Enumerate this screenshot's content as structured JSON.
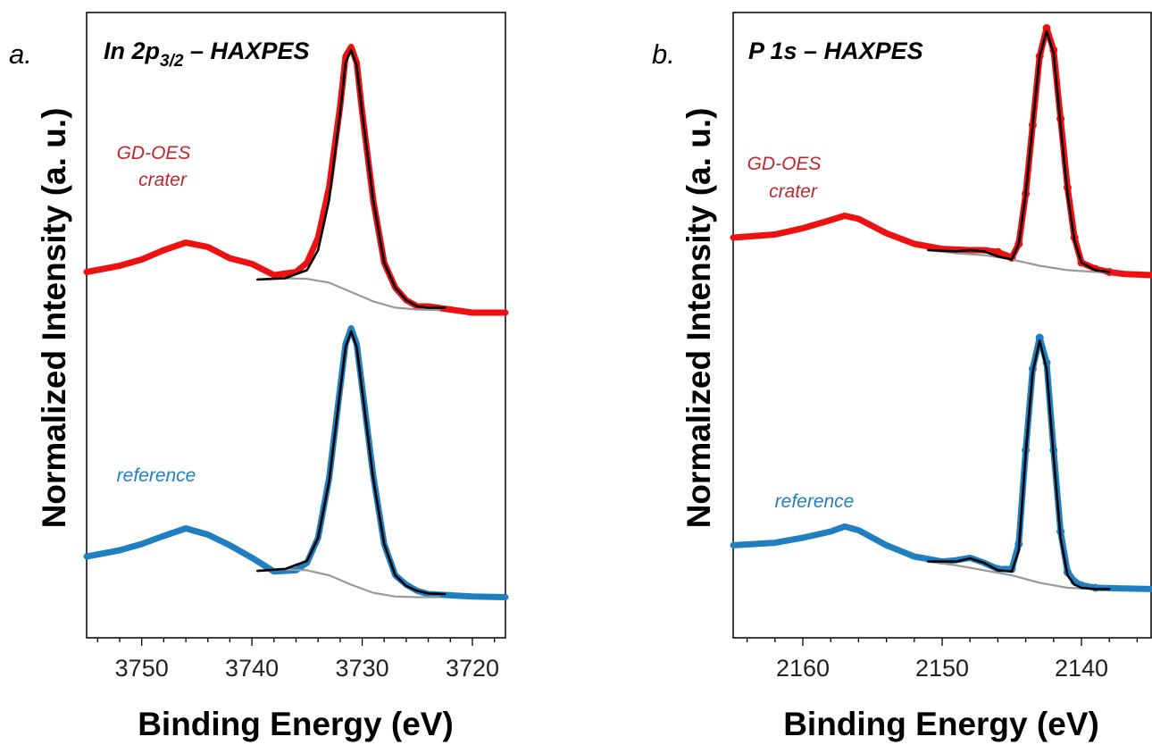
{
  "chart_data": [
    {
      "type": "line",
      "panel_label": "a.",
      "title_main": "In 2p",
      "title_sub": "3/2",
      "title_rest": " – HAXPES",
      "xlabel": "Binding Energy (eV)",
      "ylabel": "Normalized Intensity (a. u.)",
      "x_reversed": true,
      "xlim": [
        3755,
        3717
      ],
      "ylim": [
        0,
        1
      ],
      "xticks": [
        3750,
        3740,
        3730,
        3720
      ],
      "xtick_labels": [
        "3750",
        "3740",
        "3730",
        "3720"
      ],
      "colors": {
        "crater": "#ee1111",
        "reference": "#1f7fc0",
        "fit": "#000000",
        "background": "#999999"
      },
      "annotations": [
        {
          "text": "GD-OES",
          "series": "crater"
        },
        {
          "text": "crater",
          "series": "crater"
        },
        {
          "text": "reference",
          "series": "reference"
        }
      ],
      "series": [
        {
          "key": "crater",
          "x": [
            3755,
            3752,
            3750,
            3748,
            3746,
            3744,
            3742,
            3740,
            3738,
            3736,
            3735,
            3734,
            3733,
            3732,
            3731.5,
            3731,
            3730.5,
            3730,
            3729,
            3728,
            3727,
            3726,
            3725,
            3724,
            3722,
            3720,
            3717
          ],
          "y": [
            0.585,
            0.595,
            0.605,
            0.62,
            0.632,
            0.625,
            0.607,
            0.598,
            0.58,
            0.585,
            0.6,
            0.64,
            0.72,
            0.85,
            0.93,
            0.945,
            0.92,
            0.84,
            0.7,
            0.6,
            0.56,
            0.54,
            0.53,
            0.53,
            0.525,
            0.52,
            0.52
          ]
        },
        {
          "key": "reference",
          "x": [
            3755,
            3752,
            3750,
            3748,
            3746,
            3744,
            3742,
            3740,
            3738,
            3736,
            3735,
            3734,
            3733,
            3732,
            3731.5,
            3731,
            3730.5,
            3730,
            3729,
            3728,
            3727,
            3726,
            3725,
            3724,
            3722,
            3720,
            3717
          ],
          "y": [
            0.13,
            0.14,
            0.15,
            0.163,
            0.175,
            0.165,
            0.148,
            0.128,
            0.106,
            0.108,
            0.12,
            0.16,
            0.255,
            0.4,
            0.47,
            0.495,
            0.47,
            0.4,
            0.26,
            0.15,
            0.1,
            0.085,
            0.075,
            0.07,
            0.068,
            0.066,
            0.065
          ]
        },
        {
          "key": "fit",
          "x": [
            3739.5,
            3737,
            3735,
            3734,
            3733,
            3732,
            3731.5,
            3731,
            3730.5,
            3730,
            3729,
            3728,
            3727,
            3726,
            3725,
            3724,
            3722.5
          ],
          "y": [
            0.573,
            0.575,
            0.588,
            0.62,
            0.7,
            0.84,
            0.92,
            0.94,
            0.915,
            0.84,
            0.7,
            0.6,
            0.56,
            0.54,
            0.53,
            0.528,
            0.528
          ]
        },
        {
          "key": "fit",
          "x": [
            3739.5,
            3737,
            3735,
            3734,
            3733,
            3732,
            3731.5,
            3731,
            3730.5,
            3730,
            3729,
            3728,
            3727,
            3726,
            3725,
            3724,
            3722.5
          ],
          "y": [
            0.107,
            0.11,
            0.123,
            0.16,
            0.25,
            0.395,
            0.465,
            0.49,
            0.465,
            0.395,
            0.255,
            0.15,
            0.1,
            0.083,
            0.075,
            0.071,
            0.07
          ]
        },
        {
          "key": "background",
          "x": [
            3739.5,
            3737,
            3735,
            3733,
            3731,
            3729,
            3727,
            3725,
            3723
          ],
          "y": [
            0.573,
            0.575,
            0.574,
            0.568,
            0.553,
            0.538,
            0.528,
            0.525,
            0.524
          ]
        },
        {
          "key": "background",
          "x": [
            3739.5,
            3737,
            3735,
            3733,
            3731,
            3729,
            3727,
            3725,
            3723
          ],
          "y": [
            0.107,
            0.109,
            0.108,
            0.1,
            0.085,
            0.072,
            0.066,
            0.065,
            0.065
          ]
        }
      ]
    },
    {
      "type": "line",
      "panel_label": "b.",
      "title_main": "P 1s",
      "title_sub": "",
      "title_rest": " – HAXPES",
      "xlabel": "Binding Energy (eV)",
      "ylabel": "Normalized Intensity (a. u.)",
      "x_reversed": true,
      "xlim": [
        2165,
        2135
      ],
      "ylim": [
        0,
        1
      ],
      "xticks": [
        2160,
        2150,
        2140
      ],
      "xtick_labels": [
        "2160",
        "2150",
        "2140"
      ],
      "colors": {
        "crater": "#ee1111",
        "reference": "#1f7fc0",
        "fit": "#000000",
        "background": "#999999"
      },
      "annotations": [
        {
          "text": "GD-OES",
          "series": "crater"
        },
        {
          "text": "crater",
          "series": "crater"
        },
        {
          "text": "reference",
          "series": "reference"
        }
      ],
      "series": [
        {
          "key": "crater",
          "x": [
            2165,
            2162,
            2160,
            2158,
            2157,
            2156,
            2154,
            2152,
            2150,
            2148,
            2147,
            2146,
            2145,
            2144.5,
            2144,
            2143.5,
            2143,
            2142.5,
            2142,
            2141.5,
            2141,
            2140.5,
            2140,
            2139,
            2138,
            2137,
            2135
          ],
          "y": [
            0.64,
            0.645,
            0.655,
            0.668,
            0.675,
            0.67,
            0.647,
            0.63,
            0.622,
            0.62,
            0.62,
            0.617,
            0.608,
            0.63,
            0.71,
            0.82,
            0.93,
            0.975,
            0.94,
            0.83,
            0.72,
            0.64,
            0.6,
            0.59,
            0.585,
            0.582,
            0.58
          ]
        },
        {
          "key": "reference",
          "x": [
            2165,
            2162,
            2160,
            2158,
            2157,
            2156,
            2154,
            2152,
            2150,
            2149,
            2148,
            2147,
            2146,
            2145,
            2144.5,
            2144,
            2143.5,
            2143,
            2142.5,
            2142,
            2141.5,
            2141,
            2140.5,
            2140,
            2139,
            2137,
            2135
          ],
          "y": [
            0.148,
            0.152,
            0.16,
            0.17,
            0.178,
            0.172,
            0.148,
            0.13,
            0.122,
            0.124,
            0.128,
            0.12,
            0.11,
            0.11,
            0.15,
            0.3,
            0.43,
            0.48,
            0.44,
            0.3,
            0.17,
            0.105,
            0.09,
            0.084,
            0.08,
            0.079,
            0.078
          ]
        },
        {
          "key": "fit",
          "x": [
            2151,
            2149,
            2148,
            2147,
            2146,
            2145,
            2144.5,
            2144,
            2143.5,
            2143,
            2142.5,
            2142,
            2141.5,
            2141,
            2140.5,
            2140,
            2139,
            2138
          ],
          "y": [
            0.62,
            0.618,
            0.62,
            0.618,
            0.61,
            0.605,
            0.63,
            0.71,
            0.82,
            0.93,
            0.97,
            0.935,
            0.82,
            0.71,
            0.635,
            0.6,
            0.588,
            0.585
          ]
        },
        {
          "key": "fit",
          "x": [
            2151,
            2149,
            2148,
            2147,
            2146,
            2145,
            2144.5,
            2144,
            2143.5,
            2143,
            2142.5,
            2142,
            2141.5,
            2141,
            2140.5,
            2140,
            2139,
            2138
          ],
          "y": [
            0.122,
            0.122,
            0.127,
            0.12,
            0.108,
            0.106,
            0.14,
            0.295,
            0.425,
            0.475,
            0.43,
            0.29,
            0.16,
            0.1,
            0.085,
            0.08,
            0.078,
            0.078
          ]
        },
        {
          "key": "background",
          "x": [
            2151,
            2149,
            2147,
            2145,
            2143,
            2141,
            2139,
            2138
          ],
          "y": [
            0.62,
            0.615,
            0.612,
            0.605,
            0.595,
            0.588,
            0.585,
            0.585
          ]
        },
        {
          "key": "background",
          "x": [
            2151,
            2149,
            2147,
            2145,
            2143,
            2141,
            2139,
            2138
          ],
          "y": [
            0.122,
            0.116,
            0.108,
            0.1,
            0.088,
            0.08,
            0.078,
            0.078
          ]
        }
      ]
    }
  ]
}
